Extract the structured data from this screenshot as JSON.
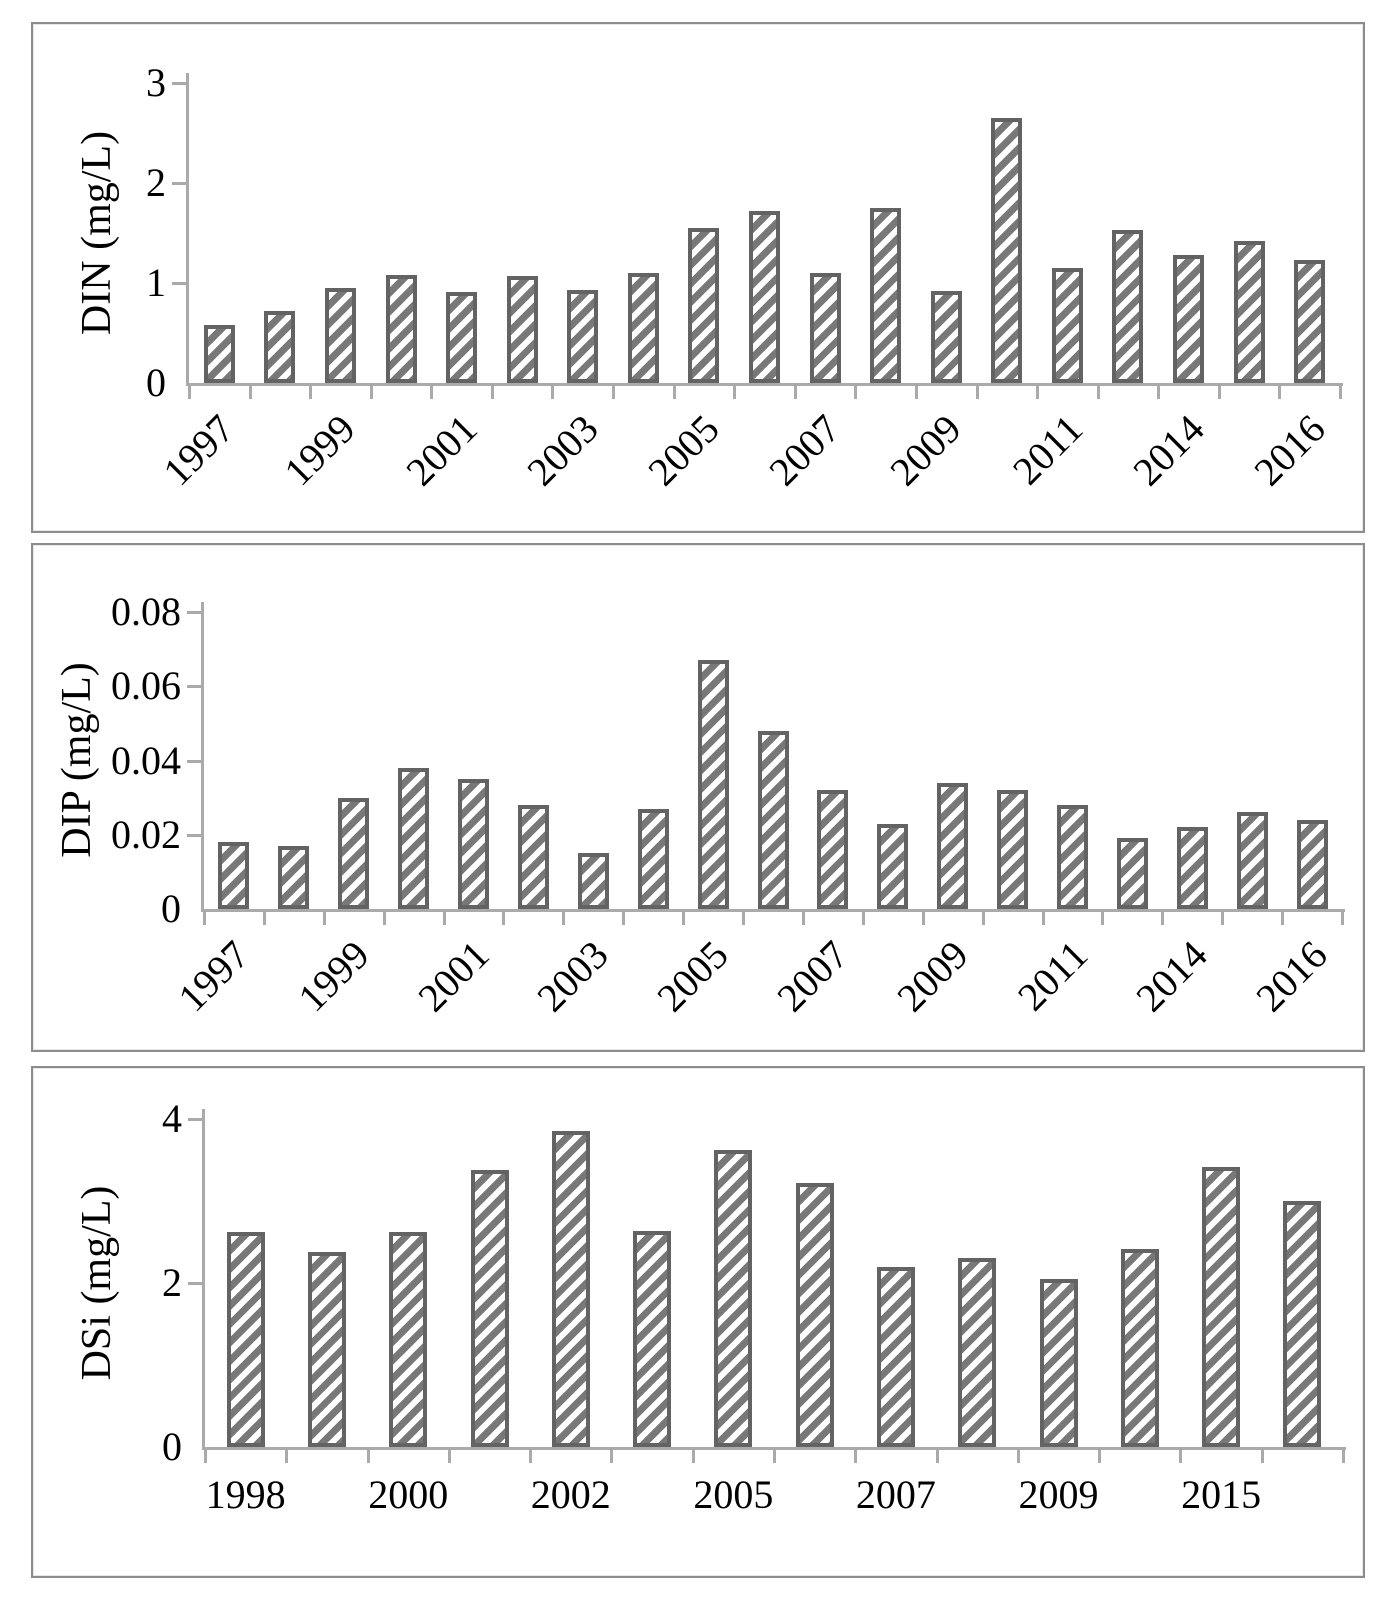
{
  "figure": {
    "background": "#ffffff",
    "panel_border_color": "#8c8c8c",
    "description": "Three stacked hatched bar charts of annual nutrient concentrations"
  },
  "colors": {
    "bar_border": "#636363",
    "bar_stripe": "#787878",
    "bar_fill": "#ffffff",
    "axis": "#aaaaaa",
    "text": "#000000"
  },
  "chart_data": [
    {
      "id": "din",
      "type": "bar",
      "ylabel": "DIN (mg/L)",
      "ylim": [
        0,
        3
      ],
      "grid": false,
      "legend": "none",
      "hatch": "diagonal-forward",
      "x_label_rotation_deg": 45,
      "yticks": [
        {
          "value": 0,
          "label": "0"
        },
        {
          "value": 1,
          "label": "1"
        },
        {
          "value": 2,
          "label": "2"
        },
        {
          "value": 3,
          "label": "3"
        }
      ],
      "values": [
        0.58,
        0.72,
        0.95,
        1.08,
        0.91,
        1.07,
        0.93,
        1.1,
        1.55,
        1.72,
        1.1,
        1.75,
        0.92,
        2.65,
        1.15,
        1.53,
        1.28,
        1.42,
        1.23
      ],
      "xticks": [
        {
          "index": 0,
          "label": "1997"
        },
        {
          "index": 2,
          "label": "1999"
        },
        {
          "index": 4,
          "label": "2001"
        },
        {
          "index": 6,
          "label": "2003"
        },
        {
          "index": 8,
          "label": "2005"
        },
        {
          "index": 10,
          "label": "2007"
        },
        {
          "index": 12,
          "label": "2009"
        },
        {
          "index": 14,
          "label": "2011"
        },
        {
          "index": 16,
          "label": "2014"
        },
        {
          "index": 18,
          "label": "2016"
        }
      ]
    },
    {
      "id": "dip",
      "type": "bar",
      "ylabel": "DIP (mg/L)",
      "ylim": [
        0,
        0.08
      ],
      "grid": false,
      "legend": "none",
      "hatch": "diagonal-forward",
      "x_label_rotation_deg": 45,
      "yticks": [
        {
          "value": 0,
          "label": "0"
        },
        {
          "value": 0.02,
          "label": "0.02"
        },
        {
          "value": 0.04,
          "label": "0.04"
        },
        {
          "value": 0.06,
          "label": "0.06"
        },
        {
          "value": 0.08,
          "label": "0.08"
        }
      ],
      "values": [
        0.018,
        0.017,
        0.03,
        0.038,
        0.035,
        0.028,
        0.015,
        0.027,
        0.067,
        0.048,
        0.032,
        0.023,
        0.034,
        0.032,
        0.028,
        0.019,
        0.022,
        0.026,
        0.024
      ],
      "xticks": [
        {
          "index": 0,
          "label": "1997"
        },
        {
          "index": 2,
          "label": "1999"
        },
        {
          "index": 4,
          "label": "2001"
        },
        {
          "index": 6,
          "label": "2003"
        },
        {
          "index": 8,
          "label": "2005"
        },
        {
          "index": 10,
          "label": "2007"
        },
        {
          "index": 12,
          "label": "2009"
        },
        {
          "index": 14,
          "label": "2011"
        },
        {
          "index": 16,
          "label": "2014"
        },
        {
          "index": 18,
          "label": "2016"
        }
      ]
    },
    {
      "id": "dsi",
      "type": "bar",
      "ylabel": "DSi (mg/L)",
      "ylim": [
        0,
        4
      ],
      "grid": false,
      "legend": "none",
      "hatch": "diagonal-forward",
      "x_label_rotation_deg": 0,
      "yticks": [
        {
          "value": 0,
          "label": "0"
        },
        {
          "value": 2,
          "label": "2"
        },
        {
          "value": 4,
          "label": "4"
        }
      ],
      "values": [
        2.62,
        2.38,
        2.62,
        3.38,
        3.85,
        2.63,
        3.62,
        3.22,
        2.2,
        2.3,
        2.05,
        2.42,
        3.42,
        3.0
      ],
      "xticks": [
        {
          "index": 0,
          "label": "1998"
        },
        {
          "index": 2,
          "label": "2000"
        },
        {
          "index": 4,
          "label": "2002"
        },
        {
          "index": 6,
          "label": "2005"
        },
        {
          "index": 8,
          "label": "2007"
        },
        {
          "index": 10,
          "label": "2009"
        },
        {
          "index": 12,
          "label": "2015"
        }
      ]
    }
  ]
}
